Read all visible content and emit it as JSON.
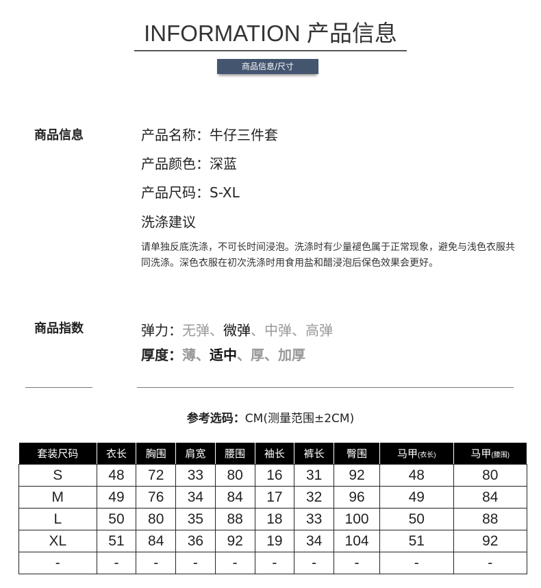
{
  "header": {
    "title": "INFORMATION 产品信息",
    "badge": "商品信息/尺寸"
  },
  "info": {
    "section": "商品信息",
    "name_label": "产品名称：",
    "name": "牛仔三件套",
    "color_label": "产品颜色：",
    "color": "深蓝",
    "size_label": "产品尺码：",
    "size": "S-XL",
    "wash_title": "洗涤建议",
    "wash_text": "请单独反底洗涤，不可长时间浸泡。洗涤时有少量褪色属于正常现象，避免与浅色衣服共同洗涤。深色衣服在初次洗涤时用食用盐和醋浸泡后保色效果会更好。"
  },
  "index": {
    "section": "商品指数",
    "elastic_label": "弹力：",
    "elastic_options": [
      {
        "text": "无弹",
        "selected": false
      },
      {
        "text": "微弹",
        "selected": true
      },
      {
        "text": "中弹",
        "selected": false
      },
      {
        "text": "高弹",
        "selected": false
      }
    ],
    "thickness_label": "厚度：",
    "thickness_options": [
      {
        "text": "薄",
        "selected": false
      },
      {
        "text": "适中",
        "selected": true
      },
      {
        "text": "厚",
        "selected": false
      },
      {
        "text": "加厚",
        "selected": false
      }
    ]
  },
  "reference": {
    "label": "参考选码：",
    "text": "CM(测量范围±2CM)"
  },
  "table": {
    "headers": [
      "套装尺码",
      "衣长",
      "胸围",
      "肩宽",
      "腰围",
      "袖长",
      "裤长",
      "臀围",
      "马甲",
      "马甲"
    ],
    "header_notes": [
      "",
      "",
      "",
      "",
      "",
      "",
      "",
      "",
      "(衣长)",
      "(腰围)"
    ],
    "rows": [
      [
        "S",
        "48",
        "72",
        "33",
        "80",
        "16",
        "31",
        "92",
        "48",
        "80"
      ],
      [
        "M",
        "49",
        "76",
        "34",
        "84",
        "17",
        "32",
        "96",
        "49",
        "84"
      ],
      [
        "L",
        "50",
        "80",
        "35",
        "88",
        "18",
        "33",
        "100",
        "50",
        "88"
      ],
      [
        "XL",
        "51",
        "84",
        "36",
        "92",
        "19",
        "34",
        "104",
        "51",
        "92"
      ],
      [
        "-",
        "-",
        "-",
        "-",
        "-",
        "-",
        "-",
        "-",
        "-",
        "-"
      ]
    ]
  },
  "colors": {
    "badge": "#445570",
    "selected": "#111111",
    "unselected": "#999999"
  }
}
